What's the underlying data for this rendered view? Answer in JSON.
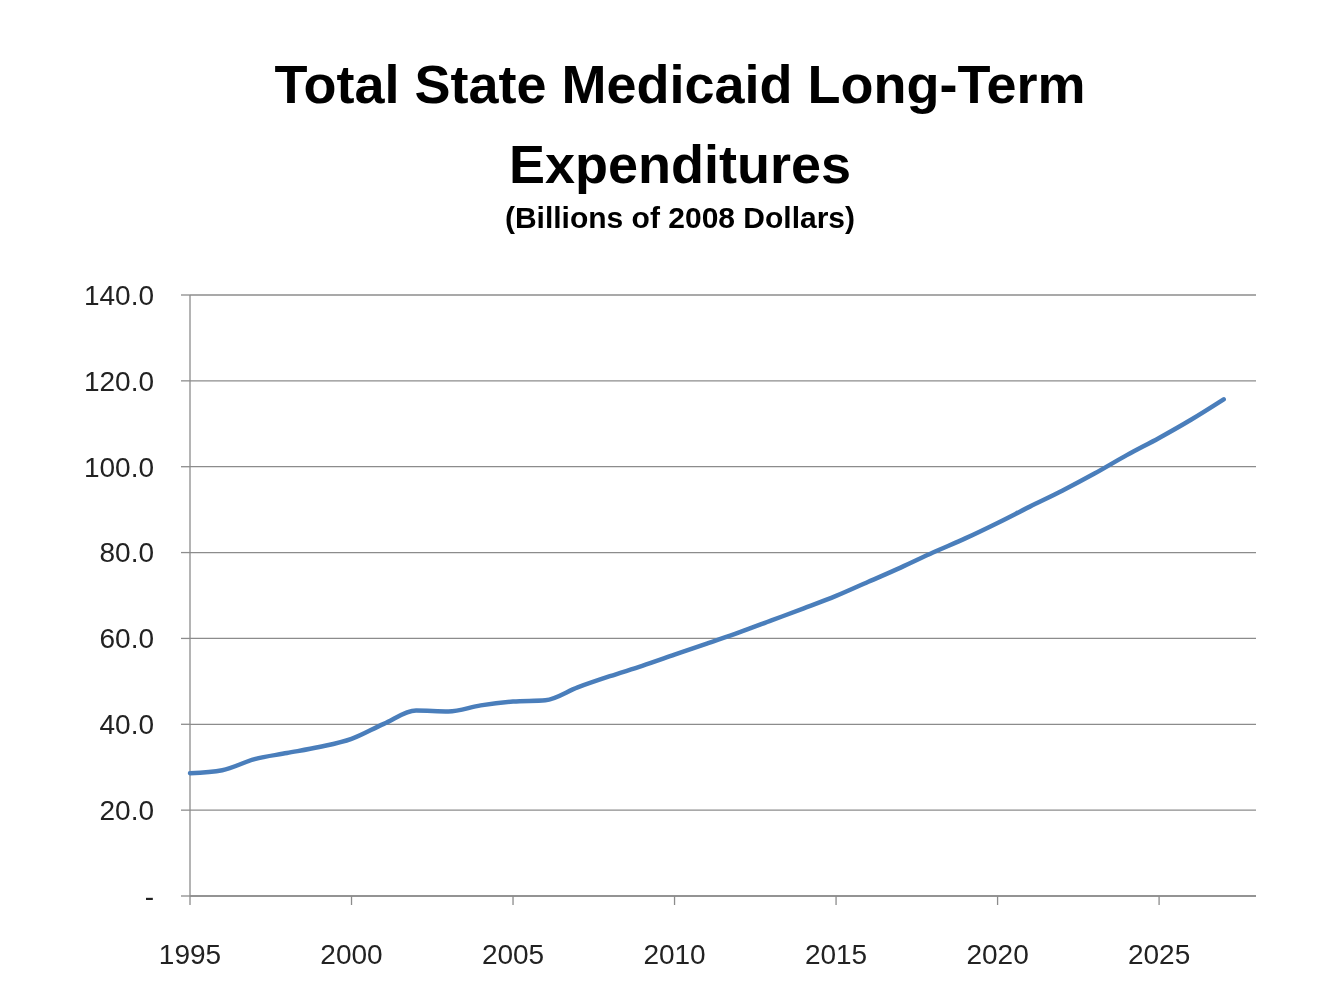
{
  "chart_data": {
    "type": "line",
    "title": "Total State Medicaid Long-Term Expenditures",
    "subtitle": "(Billions of 2008 Dollars)",
    "x": [
      1995,
      1996,
      1997,
      1998,
      1999,
      2000,
      2001,
      2002,
      2003,
      2004,
      2005,
      2006,
      2007,
      2008,
      2009,
      2010,
      2011,
      2012,
      2013,
      2014,
      2015,
      2016,
      2017,
      2018,
      2019,
      2020,
      2021,
      2022,
      2023,
      2024,
      2025,
      2026,
      2027
    ],
    "series": [
      {
        "color": "#4a7ebb",
        "values": [
          28.6,
          29.3,
          31.9,
          33.3,
          34.7,
          36.6,
          40.1,
          43.2,
          43.0,
          44.4,
          45.3,
          45.6,
          48.6,
          51.2,
          53.6,
          56.2,
          58.8,
          61.4,
          64.2,
          67.0,
          69.9,
          73.2,
          76.5,
          80.0,
          83.3,
          86.9,
          90.7,
          94.4,
          98.4,
          102.7,
          106.7,
          111.0,
          115.7
        ]
      }
    ],
    "xlim": [
      1995,
      2028
    ],
    "xticks": [
      1995,
      2000,
      2005,
      2010,
      2015,
      2020,
      2025
    ],
    "ylim": [
      0,
      140
    ],
    "yticks": [
      {
        "value": 0,
        "label": "-"
      },
      {
        "value": 20,
        "label": "20.0"
      },
      {
        "value": 40,
        "label": "40.0"
      },
      {
        "value": 60,
        "label": "60.0"
      },
      {
        "value": 80,
        "label": "80.0"
      },
      {
        "value": 100,
        "label": "100.0"
      },
      {
        "value": 120,
        "label": "120.0"
      },
      {
        "value": 140,
        "label": "140.0"
      }
    ],
    "grid": "y",
    "marker": "none",
    "line_style": "solid"
  }
}
